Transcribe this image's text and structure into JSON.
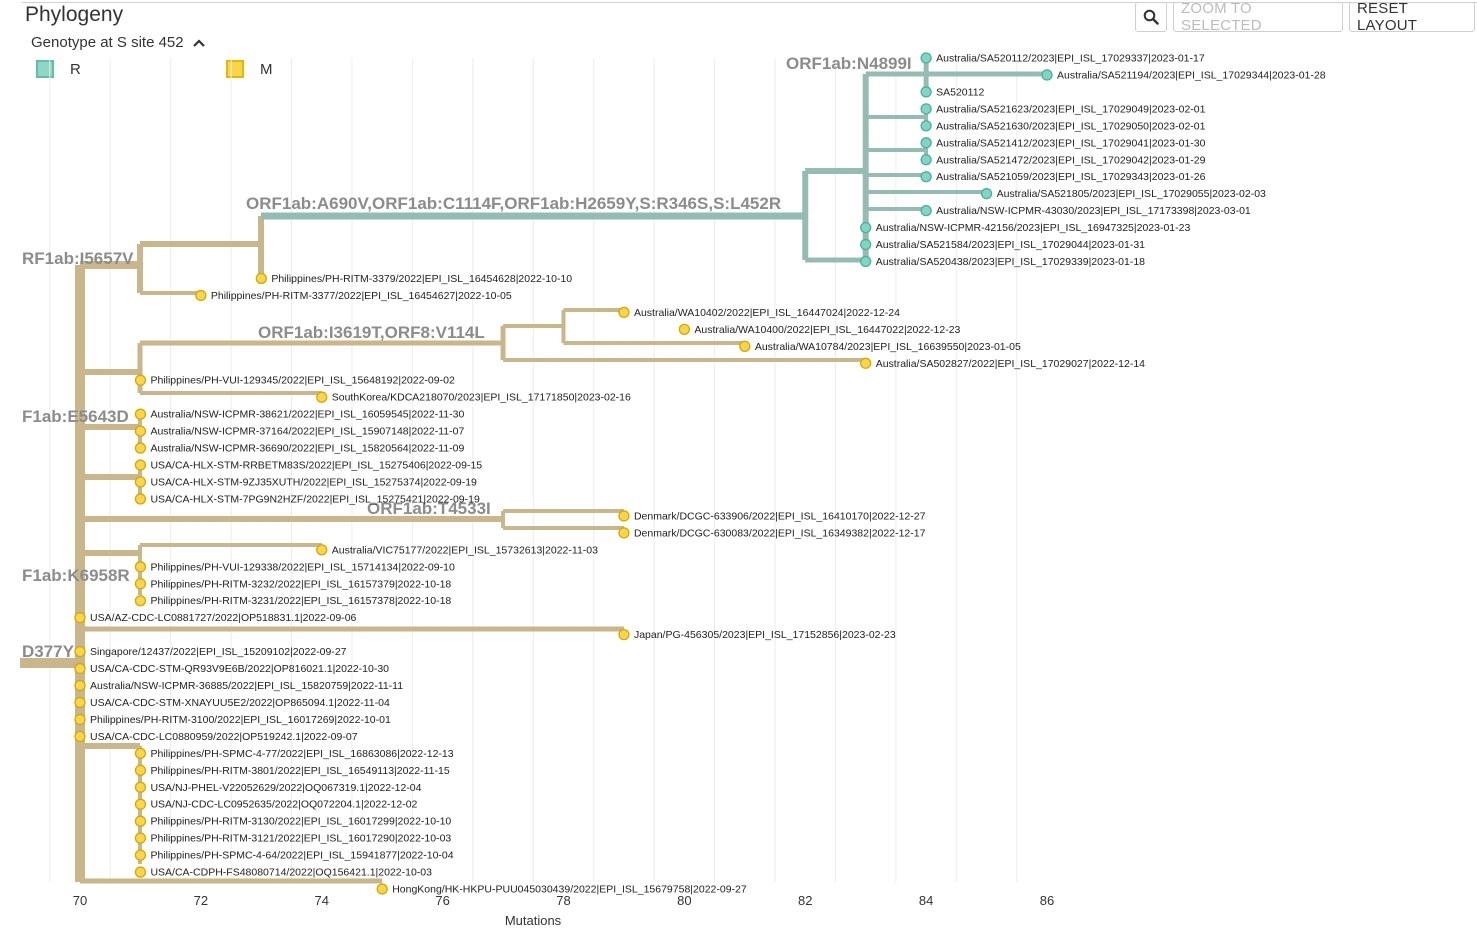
{
  "panel": {
    "title": "Phylogeny"
  },
  "toolbar": {
    "zoom_selected_label": "ZOOM TO SELECTED",
    "reset_layout_label": "RESET LAYOUT",
    "search_icon": "magnifier-icon"
  },
  "legend": {
    "title": "Genotype at S site 452",
    "toggle_icon": "chevron-up-icon",
    "items": [
      {
        "label": "R",
        "color": "#8ed7c5",
        "border": "#5fbfa8"
      },
      {
        "label": "M",
        "color": "#f9d54c",
        "border": "#e6b800"
      }
    ]
  },
  "colors": {
    "branch_R": "#94bcb2",
    "branch_M": "#c9b68a",
    "tip_R_fill": "#7ed6c3",
    "tip_R_stroke": "#4cb09a",
    "tip_M_fill": "#fad648",
    "tip_M_stroke": "#d6a800",
    "grid": "#e2e2e2",
    "branch_label": "#8c8c8c"
  },
  "axis": {
    "label": "Mutations",
    "ticks": [
      "70",
      "72",
      "74",
      "76",
      "78",
      "80",
      "82",
      "84",
      "86"
    ]
  },
  "branch_labels": [
    "ORF1ab:N4899I",
    "ORF1ab:A690V,ORF1ab:C1114F,ORF1ab:H2659Y,S:R346S,S:L452R",
    "RF1ab:I5657V",
    "ORF1ab:I3619T,ORF8:V114L",
    "F1ab:E5643D",
    "ORF1ab:T4533I",
    "F1ab:K6958R",
    "D377Y"
  ],
  "tips": [
    {
      "label": "Australia/SA520112/2023|EPI_ISL_17029337|2023-01-17",
      "mutations": 84,
      "genotype": "R"
    },
    {
      "label": "Australia/SA521194/2023|EPI_ISL_17029344|2023-01-28",
      "mutations": 86,
      "genotype": "R"
    },
    {
      "label": "SA520112",
      "mutations": 84,
      "genotype": "R"
    },
    {
      "label": "Australia/SA521623/2023|EPI_ISL_17029049|2023-02-01",
      "mutations": 84,
      "genotype": "R"
    },
    {
      "label": "Australia/SA521630/2023|EPI_ISL_17029050|2023-02-01",
      "mutations": 84,
      "genotype": "R"
    },
    {
      "label": "Australia/SA521412/2023|EPI_ISL_17029041|2023-01-30",
      "mutations": 84,
      "genotype": "R"
    },
    {
      "label": "Australia/SA521472/2023|EPI_ISL_17029042|2023-01-29",
      "mutations": 84,
      "genotype": "R"
    },
    {
      "label": "Australia/SA521059/2023|EPI_ISL_17029343|2023-01-26",
      "mutations": 84,
      "genotype": "R"
    },
    {
      "label": "Australia/SA521805/2023|EPI_ISL_17029055|2023-02-03",
      "mutations": 85,
      "genotype": "R"
    },
    {
      "label": "Australia/NSW-ICPMR-43030/2023|EPI_ISL_17173398|2023-03-01",
      "mutations": 84,
      "genotype": "R"
    },
    {
      "label": "Australia/NSW-ICPMR-42156/2023|EPI_ISL_16947325|2023-01-23",
      "mutations": 83,
      "genotype": "R"
    },
    {
      "label": "Australia/SA521584/2023|EPI_ISL_17029044|2023-01-31",
      "mutations": 83,
      "genotype": "R"
    },
    {
      "label": "Australia/SA520438/2023|EPI_ISL_17029339|2023-01-18",
      "mutations": 83,
      "genotype": "R"
    },
    {
      "label": "Philippines/PH-RITM-3379/2022|EPI_ISL_16454628|2022-10-10",
      "mutations": 73,
      "genotype": "M"
    },
    {
      "label": "Philippines/PH-RITM-3377/2022|EPI_ISL_16454627|2022-10-05",
      "mutations": 72,
      "genotype": "M"
    },
    {
      "label": "Australia/WA10402/2022|EPI_ISL_16447024|2022-12-24",
      "mutations": 79,
      "genotype": "M"
    },
    {
      "label": "Australia/WA10400/2022|EPI_ISL_16447022|2022-12-23",
      "mutations": 80,
      "genotype": "M"
    },
    {
      "label": "Australia/WA10784/2023|EPI_ISL_16639550|2023-01-05",
      "mutations": 81,
      "genotype": "M"
    },
    {
      "label": "Australia/SA502827/2022|EPI_ISL_17029027|2022-12-14",
      "mutations": 83,
      "genotype": "M"
    },
    {
      "label": "Philippines/PH-VUI-129345/2022|EPI_ISL_15648192|2022-09-02",
      "mutations": 71,
      "genotype": "M"
    },
    {
      "label": "SouthKorea/KDCA218070/2023|EPI_ISL_17171850|2023-02-16",
      "mutations": 74,
      "genotype": "M"
    },
    {
      "label": "Australia/NSW-ICPMR-38621/2022|EPI_ISL_16059545|2022-11-30",
      "mutations": 71,
      "genotype": "M"
    },
    {
      "label": "Australia/NSW-ICPMR-37164/2022|EPI_ISL_15907148|2022-11-07",
      "mutations": 71,
      "genotype": "M"
    },
    {
      "label": "Australia/NSW-ICPMR-36690/2022|EPI_ISL_15820564|2022-11-09",
      "mutations": 71,
      "genotype": "M"
    },
    {
      "label": "USA/CA-HLX-STM-RRBETM83S/2022|EPI_ISL_15275406|2022-09-15",
      "mutations": 71,
      "genotype": "M"
    },
    {
      "label": "USA/CA-HLX-STM-9ZJ35XUTH/2022|EPI_ISL_15275374|2022-09-19",
      "mutations": 71,
      "genotype": "M"
    },
    {
      "label": "USA/CA-HLX-STM-7PG9N2HZF/2022|EPI_ISL_15275421|2022-09-19",
      "mutations": 71,
      "genotype": "M"
    },
    {
      "label": "Denmark/DCGC-633906/2022|EPI_ISL_16410170|2022-12-27",
      "mutations": 79,
      "genotype": "M"
    },
    {
      "label": "Denmark/DCGC-630083/2022|EPI_ISL_16349382|2022-12-17",
      "mutations": 79,
      "genotype": "M"
    },
    {
      "label": "Australia/VIC75177/2022|EPI_ISL_15732613|2022-11-03",
      "mutations": 74,
      "genotype": "M"
    },
    {
      "label": "Philippines/PH-VUI-129338/2022|EPI_ISL_15714134|2022-09-10",
      "mutations": 71,
      "genotype": "M"
    },
    {
      "label": "Philippines/PH-RITM-3232/2022|EPI_ISL_16157379|2022-10-18",
      "mutations": 71,
      "genotype": "M"
    },
    {
      "label": "Philippines/PH-RITM-3231/2022|EPI_ISL_16157378|2022-10-18",
      "mutations": 71,
      "genotype": "M"
    },
    {
      "label": "USA/AZ-CDC-LC0881727/2022|OP518831.1|2022-09-06",
      "mutations": 70,
      "genotype": "M"
    },
    {
      "label": "Japan/PG-456305/2023|EPI_ISL_17152856|2023-02-23",
      "mutations": 79,
      "genotype": "M"
    },
    {
      "label": "Singapore/12437/2022|EPI_ISL_15209102|2022-09-27",
      "mutations": 70,
      "genotype": "M"
    },
    {
      "label": "USA/CA-CDC-STM-QR93V9E6B/2022|OP816021.1|2022-10-30",
      "mutations": 70,
      "genotype": "M"
    },
    {
      "label": "Australia/NSW-ICPMR-36885/2022|EPI_ISL_15820759|2022-11-11",
      "mutations": 70,
      "genotype": "M"
    },
    {
      "label": "USA/CA-CDC-STM-XNAYUU5E2/2022|OP865094.1|2022-11-04",
      "mutations": 70,
      "genotype": "M"
    },
    {
      "label": "Philippines/PH-RITM-3100/2022|EPI_ISL_16017269|2022-10-01",
      "mutations": 70,
      "genotype": "M"
    },
    {
      "label": "USA/CA-CDC-LC0880959/2022|OP519242.1|2022-09-07",
      "mutations": 70,
      "genotype": "M"
    },
    {
      "label": "Philippines/PH-SPMC-4-77/2022|EPI_ISL_16863086|2022-12-13",
      "mutations": 71,
      "genotype": "M"
    },
    {
      "label": "Philippines/PH-RITM-3801/2022|EPI_ISL_16549113|2022-11-15",
      "mutations": 71,
      "genotype": "M"
    },
    {
      "label": "USA/NJ-PHEL-V22052629/2022|OQ067319.1|2022-12-04",
      "mutations": 71,
      "genotype": "M"
    },
    {
      "label": "USA/NJ-CDC-LC0952635/2022|OQ072204.1|2022-12-02",
      "mutations": 71,
      "genotype": "M"
    },
    {
      "label": "Philippines/PH-RITM-3130/2022|EPI_ISL_16017299|2022-10-10",
      "mutations": 71,
      "genotype": "M"
    },
    {
      "label": "Philippines/PH-RITM-3121/2022|EPI_ISL_16017290|2022-10-03",
      "mutations": 71,
      "genotype": "M"
    },
    {
      "label": "Philippines/PH-SPMC-4-64/2022|EPI_ISL_15941877|2022-10-04",
      "mutations": 71,
      "genotype": "M"
    },
    {
      "label": "USA/CA-CDPH-FS48080714/2022|OQ156421.1|2022-10-03",
      "mutations": 71,
      "genotype": "M"
    },
    {
      "label": "HongKong/HK-HKPU-PUU045030439/2022|EPI_ISL_15679758|2022-09-27",
      "mutations": 75,
      "genotype": "M"
    }
  ]
}
